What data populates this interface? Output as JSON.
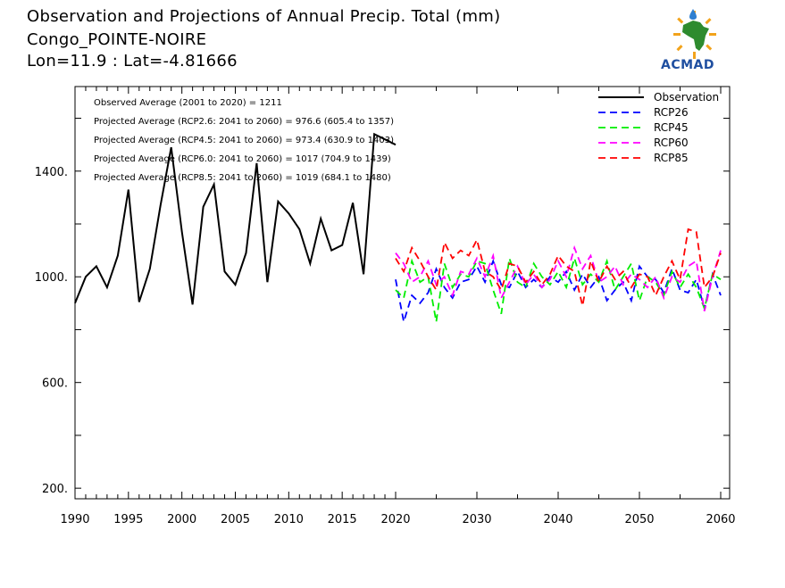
{
  "header": {
    "title": "Observation and Projections of Annual Precip. Total (mm)",
    "location": "Congo_POINTE-NOIRE",
    "coords": "Lon=11.9 : Lat=-4.81666"
  },
  "logo": {
    "text": "ACMAD"
  },
  "annotations": [
    "Observed Average (2001 to 2020) = 1211",
    "Projected Average (RCP2.6: 2041 to 2060) = 976.6 (605.4 to 1357)",
    "Projected Average (RCP4.5: 2041 to 2060) = 973.4 (630.9 to 1403)",
    "Projected Average (RCP6.0: 2041 to 2060) = 1017 (704.9 to 1439)",
    "Projected Average (RCP8.5: 2041 to 2060) = 1019 (684.1 to 1480)"
  ],
  "colors": {
    "observation": "#000000",
    "rcp26": "#0000ff",
    "rcp45": "#00ee00",
    "rcp60": "#ff00ff",
    "rcp85": "#ff0000",
    "logo_text": "#1f4fa0"
  },
  "chart_data": {
    "type": "line",
    "title": "Observation and Projections of Annual Precip. Total (mm)",
    "xlim": [
      1990,
      2060
    ],
    "ylim": [
      160,
      1720
    ],
    "x_ticks": [
      "1990",
      "1995",
      "2000",
      "2005",
      "2010",
      "2015",
      "2020",
      "2030",
      "2040",
      "2050",
      "2060"
    ],
    "y_ticks": [
      "200.",
      "600.",
      "1000.",
      "1400."
    ],
    "legend_position": "top-right",
    "grid": false,
    "series": [
      {
        "name": "Observation",
        "style": "solid",
        "x": [
          1990,
          1991,
          1992,
          1993,
          1994,
          1995,
          1996,
          1997,
          1998,
          1999,
          2000,
          2001,
          2002,
          2003,
          2004,
          2005,
          2006,
          2007,
          2008,
          2009,
          2010,
          2011,
          2012,
          2013,
          2014,
          2015,
          2016,
          2017,
          2018,
          2019,
          2020
        ],
        "values": [
          900,
          1000,
          1040,
          960,
          1080,
          1330,
          905,
          1030,
          1270,
          1490,
          1170,
          895,
          1265,
          1350,
          1020,
          970,
          1090,
          1430,
          980,
          1285,
          1240,
          1180,
          1050,
          1220,
          1100,
          1120,
          1280,
          1010,
          1540,
          1520,
          1500
        ]
      },
      {
        "name": "RCP26",
        "style": "dashed",
        "x": [
          2020,
          2021,
          2022,
          2023,
          2024,
          2025,
          2026,
          2027,
          2028,
          2029,
          2030,
          2031,
          2032,
          2033,
          2034,
          2035,
          2036,
          2037,
          2038,
          2039,
          2040,
          2041,
          2042,
          2043,
          2044,
          2045,
          2046,
          2047,
          2048,
          2049,
          2050,
          2051,
          2052,
          2053,
          2054,
          2055,
          2056,
          2057,
          2058,
          2059,
          2060
        ],
        "values": [
          990,
          830,
          930,
          900,
          940,
          1030,
          960,
          920,
          980,
          990,
          1040,
          980,
          1060,
          970,
          960,
          1020,
          960,
          990,
          960,
          1000,
          980,
          1020,
          950,
          1010,
          960,
          1000,
          910,
          950,
          980,
          910,
          1040,
          1000,
          990,
          940,
          1030,
          950,
          940,
          990,
          880,
          1010,
          930
        ]
      },
      {
        "name": "RCP45",
        "style": "dashed",
        "x": [
          2020,
          2021,
          2022,
          2023,
          2024,
          2025,
          2026,
          2027,
          2028,
          2029,
          2030,
          2031,
          2032,
          2033,
          2034,
          2035,
          2036,
          2037,
          2038,
          2039,
          2040,
          2041,
          2042,
          2043,
          2044,
          2045,
          2046,
          2047,
          2048,
          2049,
          2050,
          2051,
          2052,
          2053,
          2054,
          2055,
          2056,
          2057,
          2058,
          2059,
          2060
        ],
        "values": [
          950,
          920,
          1060,
          980,
          1000,
          830,
          1050,
          960,
          1010,
          1000,
          1060,
          1050,
          950,
          860,
          1070,
          980,
          960,
          1050,
          1000,
          970,
          1020,
          960,
          1070,
          970,
          1010,
          980,
          1060,
          950,
          1000,
          1050,
          910,
          1000,
          980,
          930,
          1020,
          960,
          1010,
          960,
          880,
          1010,
          990
        ]
      },
      {
        "name": "RCP60",
        "style": "dashed",
        "x": [
          2020,
          2021,
          2022,
          2023,
          2024,
          2025,
          2026,
          2027,
          2028,
          2029,
          2030,
          2031,
          2032,
          2033,
          2034,
          2035,
          2036,
          2037,
          2038,
          2039,
          2040,
          2041,
          2042,
          2043,
          2044,
          2045,
          2046,
          2047,
          2048,
          2049,
          2050,
          2051,
          2052,
          2053,
          2054,
          2055,
          2056,
          2057,
          2058,
          2059,
          2060
        ],
        "values": [
          1090,
          1050,
          980,
          1000,
          1060,
          970,
          1000,
          930,
          1020,
          1010,
          1070,
          1000,
          1080,
          920,
          980,
          1040,
          970,
          1010,
          960,
          990,
          1060,
          1000,
          1110,
          1030,
          1080,
          980,
          1000,
          1040,
          970,
          1010,
          990,
          960,
          1000,
          920,
          1000,
          980,
          1040,
          1060,
          870,
          1000,
          1100
        ]
      },
      {
        "name": "RCP85",
        "style": "dashed",
        "x": [
          2020,
          2021,
          2022,
          2023,
          2024,
          2025,
          2026,
          2027,
          2028,
          2029,
          2030,
          2031,
          2032,
          2033,
          2034,
          2035,
          2036,
          2037,
          2038,
          2039,
          2040,
          2041,
          2042,
          2043,
          2044,
          2045,
          2046,
          2047,
          2048,
          2049,
          2050,
          2051,
          2052,
          2053,
          2054,
          2055,
          2056,
          2057,
          2058,
          2059,
          2060
        ],
        "values": [
          1070,
          1020,
          1110,
          1060,
          1000,
          950,
          1130,
          1070,
          1100,
          1080,
          1140,
          1020,
          1000,
          950,
          1050,
          1040,
          980,
          1020,
          970,
          1010,
          1080,
          1040,
          1020,
          890,
          1060,
          980,
          1040,
          990,
          1020,
          960,
          1010,
          1000,
          930,
          1000,
          1060,
          990,
          1180,
          1170,
          960,
          1000,
          1090
        ]
      }
    ]
  }
}
